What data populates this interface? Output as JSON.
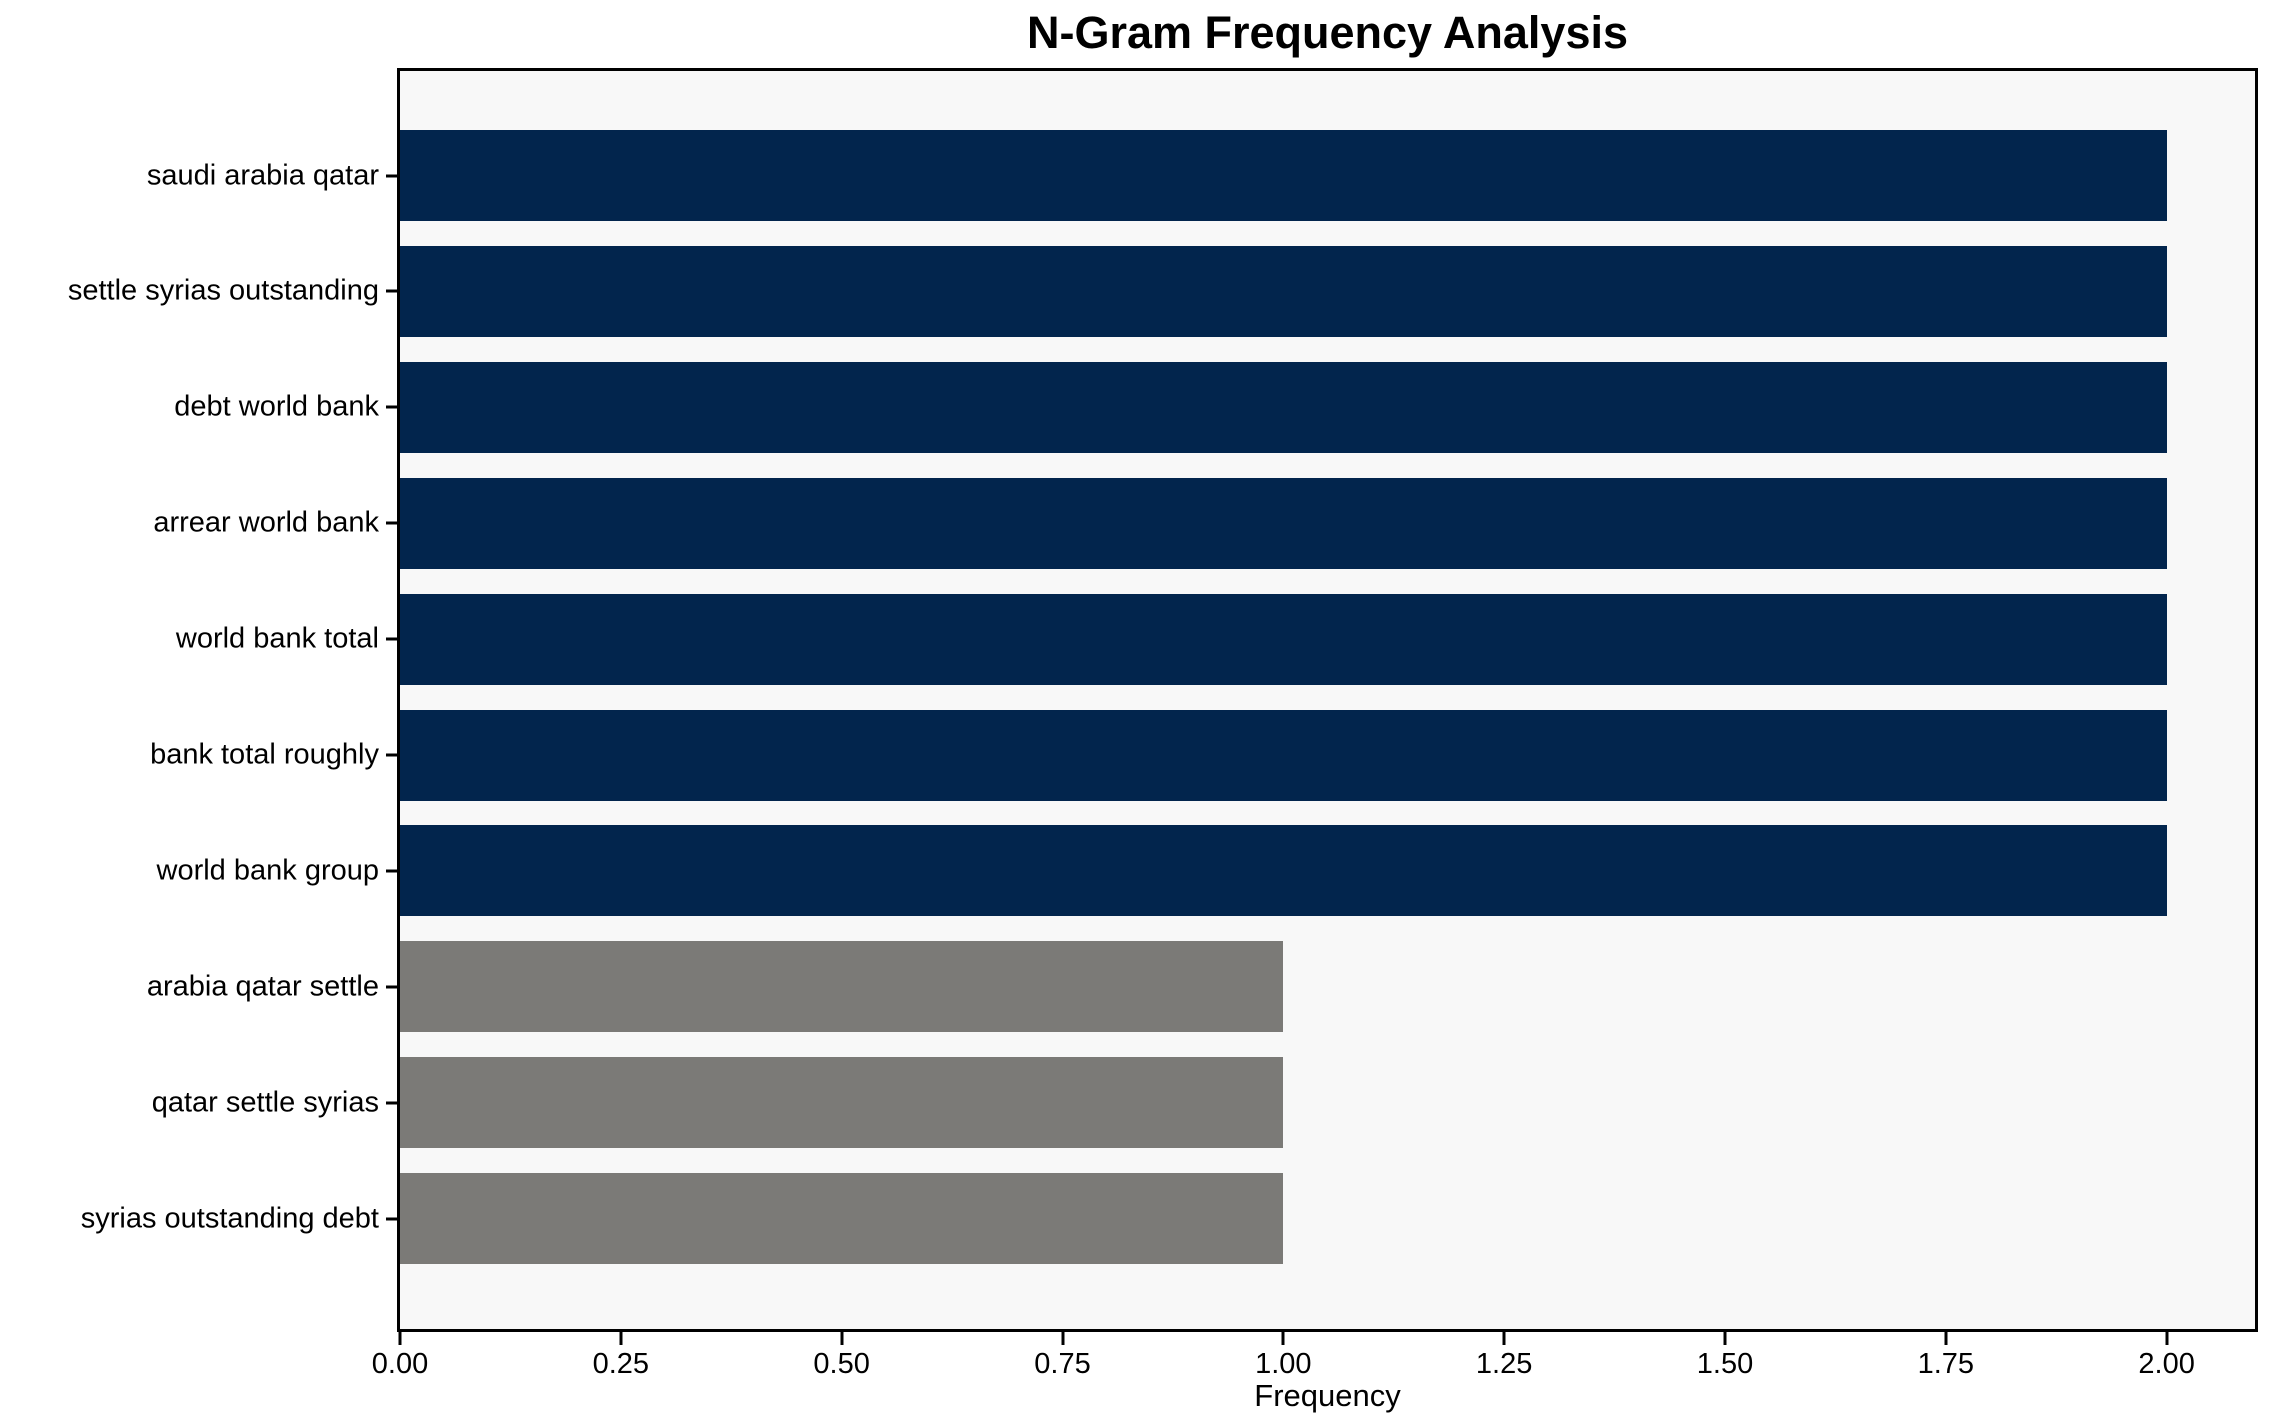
{
  "title": "N-Gram Frequency Analysis",
  "colors": {
    "page_bg": "#ffffff",
    "plot_bg": "#f8f8f8",
    "axis": "#000000",
    "bar_navy": "#02254d",
    "bar_gray": "#7b7a77"
  },
  "chart_data": {
    "type": "bar",
    "orientation": "horizontal",
    "title": "N-Gram Frequency Analysis",
    "xlabel": "Frequency",
    "ylabel": "",
    "grid": false,
    "legend": null,
    "categories": [
      "saudi arabia qatar",
      "settle syrias outstanding",
      "debt world bank",
      "arrear world bank",
      "world bank total",
      "bank total roughly",
      "world bank group",
      "arabia qatar settle",
      "qatar settle syrias",
      "syrias outstanding debt"
    ],
    "values": [
      2,
      2,
      2,
      2,
      2,
      2,
      2,
      1,
      1,
      1
    ],
    "bar_colors": [
      "#02254d",
      "#02254d",
      "#02254d",
      "#02254d",
      "#02254d",
      "#02254d",
      "#02254d",
      "#7b7a77",
      "#7b7a77",
      "#7b7a77"
    ],
    "xlim": [
      0,
      2.1
    ],
    "xticks": [
      0.0,
      0.25,
      0.5,
      0.75,
      1.0,
      1.25,
      1.5,
      1.75,
      2.0
    ],
    "xtick_labels": [
      "0.00",
      "0.25",
      "0.50",
      "0.75",
      "1.00",
      "1.25",
      "1.50",
      "1.75",
      "2.00"
    ]
  }
}
